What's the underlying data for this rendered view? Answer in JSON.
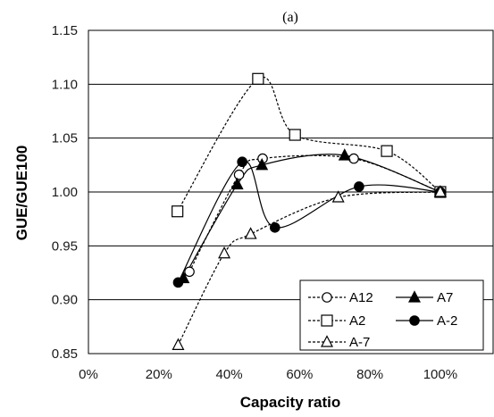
{
  "chart_data": {
    "type": "line",
    "title": "(a)",
    "xlabel": "Capacity ratio",
    "ylabel": "GUE/GUE100",
    "xlim": [
      0,
      115
    ],
    "ylim": [
      0.85,
      1.15
    ],
    "x_ticks": [
      0,
      20,
      40,
      60,
      80,
      100
    ],
    "x_tick_labels": [
      "0%",
      "20%",
      "40%",
      "60%",
      "80%",
      "100%"
    ],
    "y_ticks": [
      0.85,
      0.9,
      0.95,
      1.0,
      1.05,
      1.1,
      1.15
    ],
    "y_tick_labels": [
      "0.85",
      "0.90",
      "0.95",
      "1.00",
      "1.05",
      "1.10",
      "1.15"
    ],
    "grid": "horizontal",
    "legend_position": "bottom-right",
    "series": [
      {
        "name": "A12",
        "marker": "circle-open",
        "line": "dashed",
        "points": [
          [
            28.7,
            0.926
          ],
          [
            42.8,
            1.016
          ],
          [
            49.5,
            1.031
          ],
          [
            75.4,
            1.031
          ],
          [
            100,
            1.0
          ]
        ]
      },
      {
        "name": "A7",
        "marker": "triangle-filled",
        "line": "solid",
        "points": [
          [
            27,
            0.92
          ],
          [
            42.3,
            1.007
          ],
          [
            49.3,
            1.025
          ],
          [
            72.8,
            1.034
          ],
          [
            100,
            1.0
          ]
        ]
      },
      {
        "name": "A2",
        "marker": "square-open",
        "line": "dashed",
        "points": [
          [
            25.3,
            0.982
          ],
          [
            48.2,
            1.105
          ],
          [
            58.7,
            1.053
          ],
          [
            84.8,
            1.038
          ],
          [
            100,
            1.0
          ]
        ]
      },
      {
        "name": "A-2",
        "marker": "circle-filled",
        "line": "solid",
        "points": [
          [
            25.5,
            0.916
          ],
          [
            43.7,
            1.028
          ],
          [
            53.0,
            0.967
          ],
          [
            76.9,
            1.005
          ],
          [
            100,
            1.0
          ]
        ]
      },
      {
        "name": "A-7",
        "marker": "triangle-open",
        "line": "dashed",
        "points": [
          [
            25.5,
            0.858
          ],
          [
            38.6,
            0.943
          ],
          [
            46.1,
            0.961
          ],
          [
            71.0,
            0.995
          ],
          [
            100,
            1.0
          ]
        ]
      }
    ]
  }
}
